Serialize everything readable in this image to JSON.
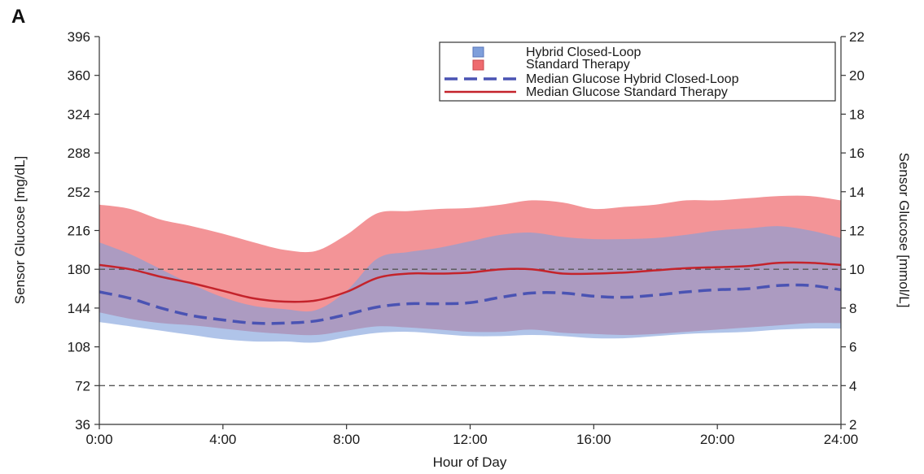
{
  "panel_label": "A",
  "colors": {
    "hcl_band": "#7f9fdb",
    "st_band": "#ee6b6f",
    "hcl_median": "#4a53b3",
    "st_median": "#c4232b",
    "reference_line": "#555555",
    "axis": "#333333"
  },
  "chart_data": {
    "type": "area",
    "xlabel": "Hour of Day",
    "ylabel": "Sensor Glucose [mg/dL]",
    "ylabel_right": "Sensor Glucose [mmol/L]",
    "x_ticks": [
      "0:00",
      "4:00",
      "8:00",
      "12:00",
      "16:00",
      "20:00",
      "24:00"
    ],
    "xlim": [
      0,
      24
    ],
    "ylim": [
      36,
      396
    ],
    "y_ticks": [
      36,
      72,
      108,
      144,
      180,
      216,
      252,
      288,
      324,
      360,
      396
    ],
    "ylim_right": [
      2,
      22
    ],
    "y_ticks_right": [
      2,
      4,
      6,
      8,
      10,
      12,
      14,
      16,
      18,
      20,
      22
    ],
    "reference_lines_mgdl": [
      72,
      180
    ],
    "legend_position": "top-right",
    "legend": [
      {
        "label": "Hybrid Closed-Loop",
        "kind": "patch",
        "series": "hcl_band"
      },
      {
        "label": "Standard Therapy",
        "kind": "patch",
        "series": "st_band"
      },
      {
        "label": "Median Glucose Hybrid Closed-Loop",
        "kind": "dashed",
        "series": "hcl_median"
      },
      {
        "label": "Median Glucose Standard Therapy",
        "kind": "solid",
        "series": "st_median"
      }
    ],
    "x": [
      0,
      1,
      2,
      3,
      4,
      5,
      6,
      7,
      8,
      9,
      10,
      11,
      12,
      13,
      14,
      15,
      16,
      17,
      18,
      19,
      20,
      21,
      22,
      23,
      24
    ],
    "bands": [
      {
        "name": "Standard Therapy",
        "key": "st_band",
        "upper": [
          240,
          236,
          226,
          220,
          213,
          205,
          198,
          197,
          212,
          232,
          234,
          236,
          237,
          240,
          244,
          242,
          236,
          238,
          240,
          244,
          244,
          246,
          248,
          248,
          244
        ],
        "lower": [
          140,
          134,
          130,
          128,
          125,
          122,
          120,
          119,
          123,
          127,
          126,
          124,
          122,
          122,
          124,
          121,
          120,
          119,
          120,
          122,
          124,
          126,
          128,
          130,
          130
        ]
      },
      {
        "name": "Hybrid Closed-Loop",
        "key": "hcl_band",
        "upper": [
          205,
          194,
          180,
          166,
          154,
          146,
          143,
          142,
          160,
          190,
          196,
          200,
          206,
          212,
          214,
          210,
          208,
          208,
          209,
          212,
          216,
          218,
          220,
          216,
          209
        ],
        "lower": [
          131,
          127,
          123,
          119,
          115,
          113,
          113,
          112,
          117,
          121,
          122,
          120,
          118,
          118,
          119,
          118,
          116,
          116,
          118,
          120,
          121,
          122,
          124,
          125,
          125
        ]
      }
    ],
    "series": [
      {
        "name": "Median Glucose Hybrid Closed-Loop",
        "key": "hcl_median",
        "style": "dashed",
        "values": [
          159,
          153,
          144,
          137,
          133,
          130,
          130,
          132,
          138,
          145,
          148,
          148,
          149,
          154,
          158,
          158,
          155,
          154,
          156,
          159,
          161,
          162,
          165,
          165,
          161
        ]
      },
      {
        "name": "Median Glucose Standard Therapy",
        "key": "st_median",
        "style": "solid",
        "values": [
          184,
          180,
          173,
          167,
          160,
          153,
          150,
          151,
          159,
          172,
          176,
          176,
          177,
          180,
          180,
          176,
          176,
          177,
          179,
          181,
          182,
          183,
          186,
          186,
          184
        ]
      }
    ]
  }
}
